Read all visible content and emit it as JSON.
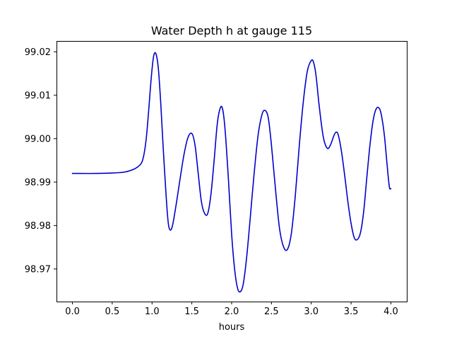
{
  "chart_data": {
    "type": "line",
    "title": "Water Depth h at gauge 115",
    "xlabel": "hours",
    "ylabel": "",
    "xlim": [
      -0.2,
      4.2
    ],
    "ylim": [
      98.9625,
      99.0225
    ],
    "xticks": [
      0.0,
      0.5,
      1.0,
      1.5,
      2.0,
      2.5,
      3.0,
      3.5,
      4.0
    ],
    "xtick_labels": [
      "0.0",
      "0.5",
      "1.0",
      "1.5",
      "2.0",
      "2.5",
      "3.0",
      "3.5",
      "4.0"
    ],
    "yticks": [
      98.97,
      98.98,
      98.99,
      99.0,
      99.01,
      99.02
    ],
    "ytick_labels": [
      "98.97",
      "98.98",
      "98.99",
      "99.00",
      "99.01",
      "99.02"
    ],
    "grid": false,
    "series": [
      {
        "color": "#0000cc",
        "x": [
          0.0,
          0.3,
          0.5,
          0.65,
          0.75,
          0.82,
          0.87,
          0.9,
          0.93,
          0.96,
          0.99,
          1.02,
          1.05,
          1.08,
          1.11,
          1.14,
          1.18,
          1.21,
          1.25,
          1.3,
          1.35,
          1.4,
          1.45,
          1.5,
          1.54,
          1.58,
          1.62,
          1.66,
          1.7,
          1.74,
          1.78,
          1.82,
          1.86,
          1.89,
          1.92,
          1.96,
          2.0,
          2.04,
          2.08,
          2.12,
          2.15,
          2.19,
          2.23,
          2.28,
          2.33,
          2.38,
          2.42,
          2.46,
          2.5,
          2.55,
          2.6,
          2.65,
          2.7,
          2.75,
          2.8,
          2.85,
          2.9,
          2.95,
          3.0,
          3.03,
          3.06,
          3.1,
          3.15,
          3.2,
          3.24,
          3.28,
          3.31,
          3.34,
          3.38,
          3.42,
          3.46,
          3.5,
          3.54,
          3.58,
          3.62,
          3.66,
          3.7,
          3.74,
          3.78,
          3.82,
          3.86,
          3.89,
          3.92,
          3.95,
          3.98,
          4.0
        ],
        "y": [
          98.992,
          98.992,
          98.9921,
          98.9923,
          98.9928,
          98.9935,
          98.9945,
          98.9965,
          99.0005,
          99.007,
          99.014,
          99.019,
          99.0195,
          99.016,
          99.008,
          98.998,
          98.986,
          98.9798,
          98.9795,
          98.9845,
          98.9905,
          98.9962,
          99.0002,
          99.0012,
          98.9985,
          98.992,
          98.9855,
          98.9828,
          98.9828,
          98.9872,
          98.995,
          99.0035,
          99.0072,
          99.0065,
          99.0015,
          98.9905,
          98.978,
          98.9695,
          98.9652,
          98.965,
          98.967,
          98.973,
          98.981,
          98.9915,
          99.0005,
          99.0055,
          99.0065,
          99.0048,
          98.9985,
          98.9885,
          98.9795,
          98.9752,
          98.9745,
          98.9782,
          98.987,
          98.9985,
          99.0085,
          99.0155,
          99.018,
          99.0175,
          99.0145,
          99.0075,
          99.0005,
          98.9978,
          98.9985,
          99.0005,
          99.0015,
          99.0008,
          98.997,
          98.9915,
          98.9855,
          98.9805,
          98.9772,
          98.9768,
          98.9785,
          98.9835,
          98.9915,
          98.999,
          99.0045,
          99.007,
          99.0068,
          99.0045,
          99.0005,
          98.9945,
          98.989,
          98.9885
        ]
      }
    ]
  }
}
